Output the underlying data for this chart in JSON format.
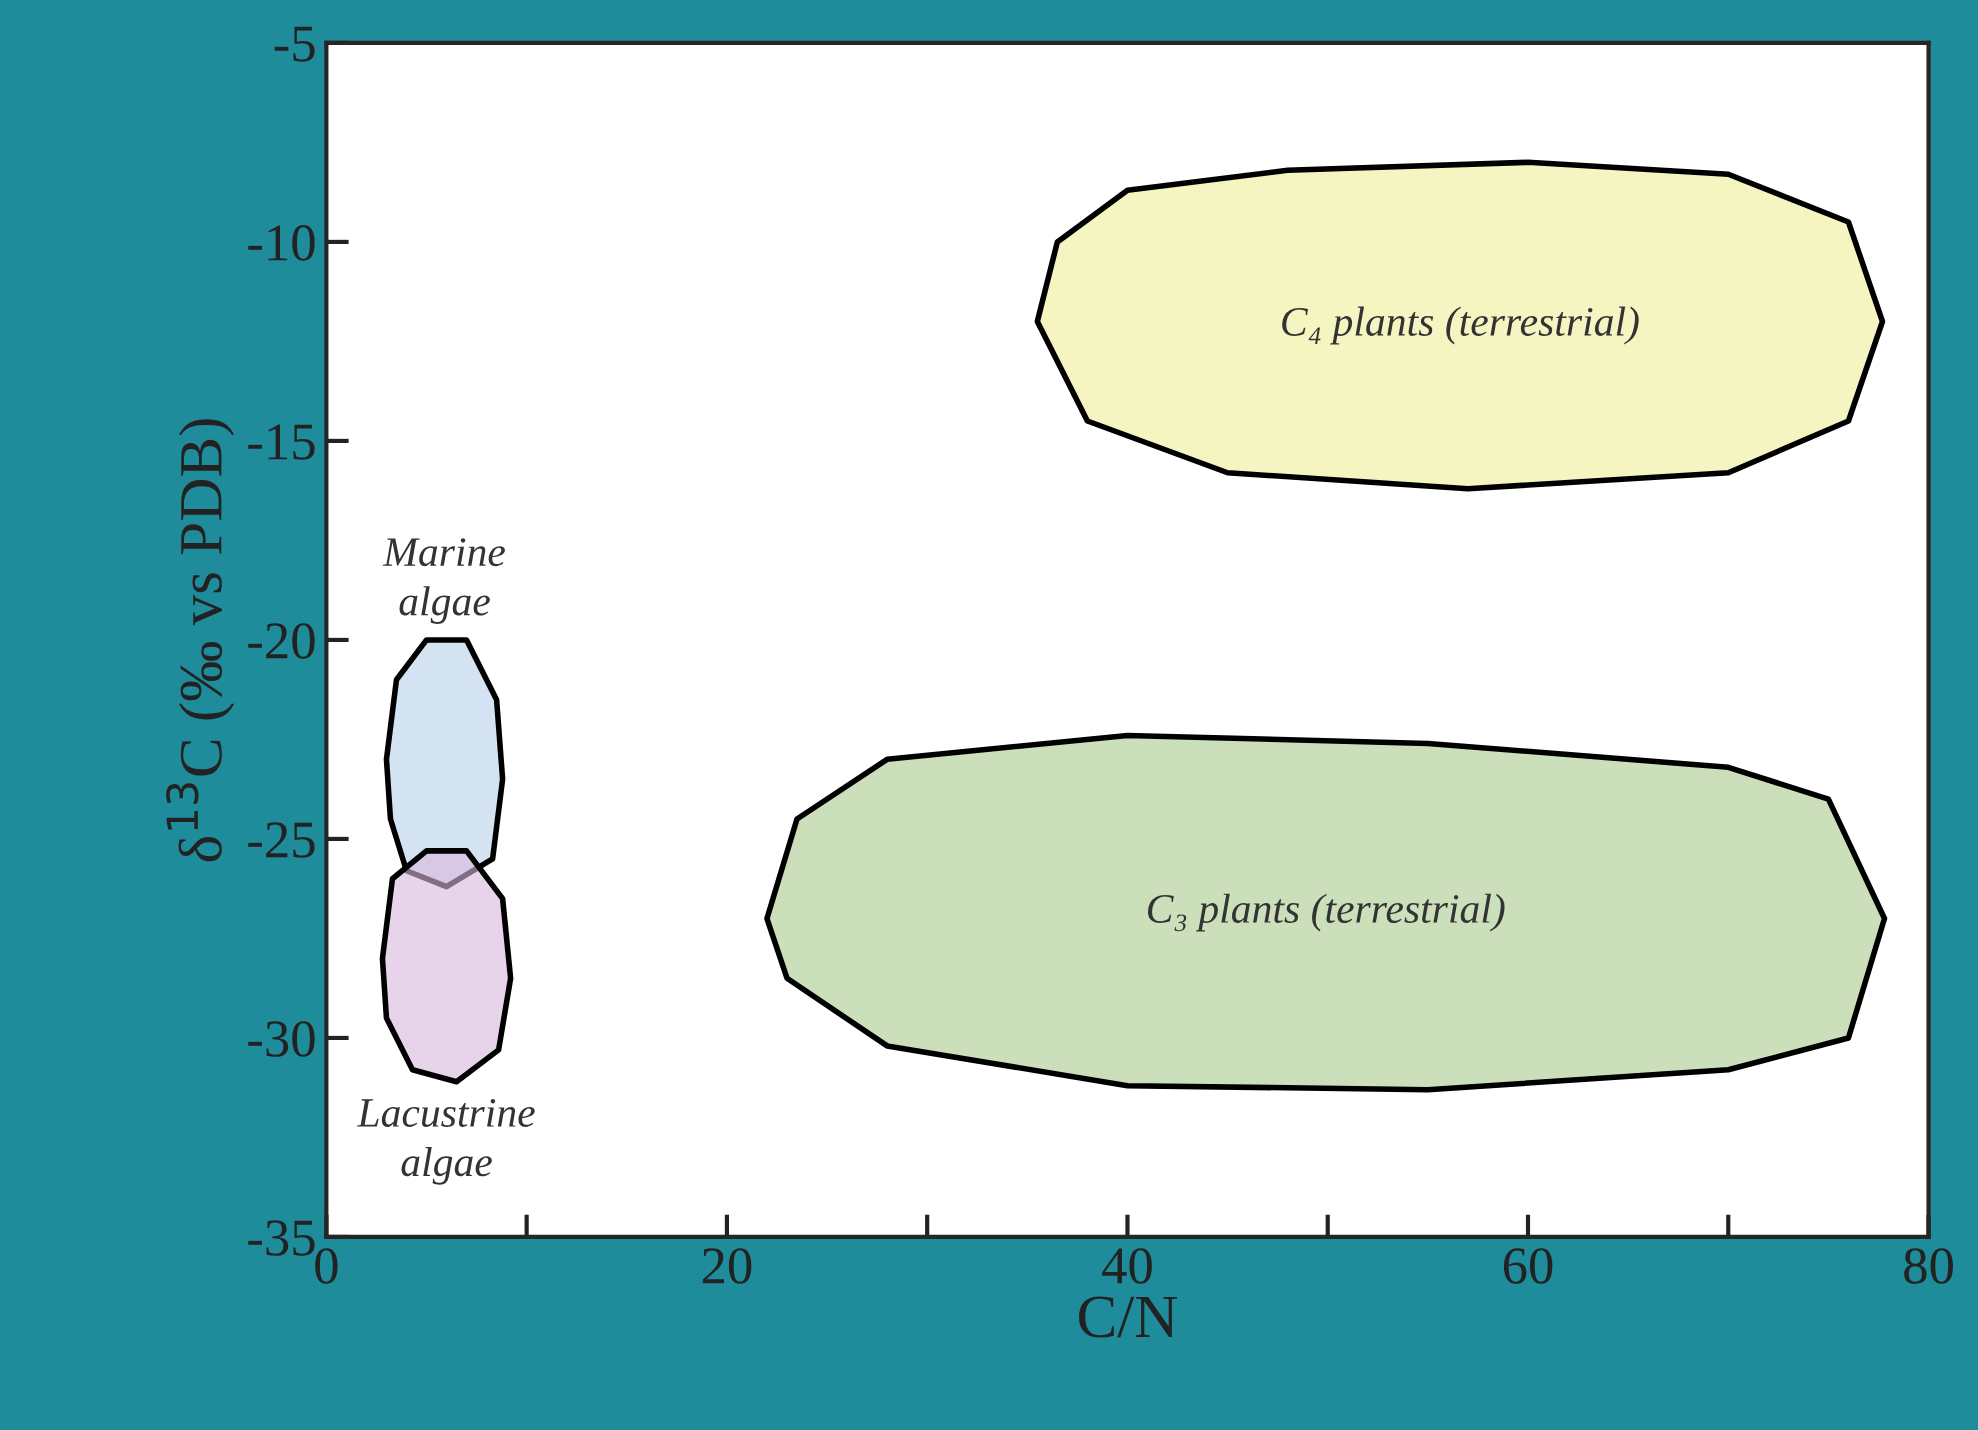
{
  "chart_data": {
    "type": "area",
    "xlabel": "C/N",
    "ylabel": "δ$^{13}$C (‰ vs PDB)",
    "xlim": [
      0,
      80
    ],
    "ylim": [
      -35,
      -5
    ],
    "xticks": [
      0,
      {
        "value": 10,
        "label": null
      },
      20,
      {
        "value": 30,
        "label": null
      },
      40,
      {
        "value": 50,
        "label": null
      },
      60,
      {
        "value": 70,
        "label": null
      },
      80
    ],
    "yticks": [
      -35,
      -30,
      -25,
      -20,
      -15,
      -10,
      -5
    ],
    "grid": false,
    "legend": false,
    "series": [
      {
        "name": "C₄ plants (terrestrial)",
        "color": "#eeee99",
        "x": [
          35.5,
          36.5,
          40,
          48,
          60,
          70,
          76,
          77.7,
          76,
          70,
          57,
          45,
          38,
          35.5
        ],
        "values": [
          -12,
          -10,
          -8.7,
          -8.2,
          -8.0,
          -8.3,
          -9.5,
          -12,
          -14.5,
          -15.8,
          -16.2,
          -15.8,
          -14.5,
          -12
        ]
      },
      {
        "name": "C₃ plants (terrestrial)",
        "color": "#a8cc8c",
        "x": [
          22,
          23.5,
          28,
          40,
          55,
          70,
          75,
          77.8,
          76,
          70,
          55,
          40,
          28,
          23,
          22
        ],
        "values": [
          -27,
          -24.5,
          -23,
          -22.4,
          -22.6,
          -23.2,
          -24,
          -27,
          -30,
          -30.8,
          -31.3,
          -31.2,
          -30.2,
          -28.5,
          -27
        ]
      },
      {
        "name": "Marine\nalgae",
        "color": "#b8d0ea",
        "x": [
          3,
          3.5,
          5,
          7,
          8.5,
          8.8,
          8.3,
          6,
          4,
          3.2,
          3
        ],
        "values": [
          -23,
          -21,
          -20,
          -20,
          -21.5,
          -23.5,
          -25.5,
          -26.2,
          -25.8,
          -24.5,
          -23
        ]
      },
      {
        "name": "Lacustrine\nalgae",
        "color": "#d9b8dc",
        "x": [
          2.8,
          3.3,
          5,
          7,
          8.8,
          9.2,
          8.6,
          6.5,
          4.3,
          3,
          2.8
        ],
        "values": [
          -28,
          -26,
          -25.3,
          -25.3,
          -26.5,
          -28.5,
          -30.3,
          -31.1,
          -30.8,
          -29.5,
          -28
        ]
      }
    ]
  }
}
